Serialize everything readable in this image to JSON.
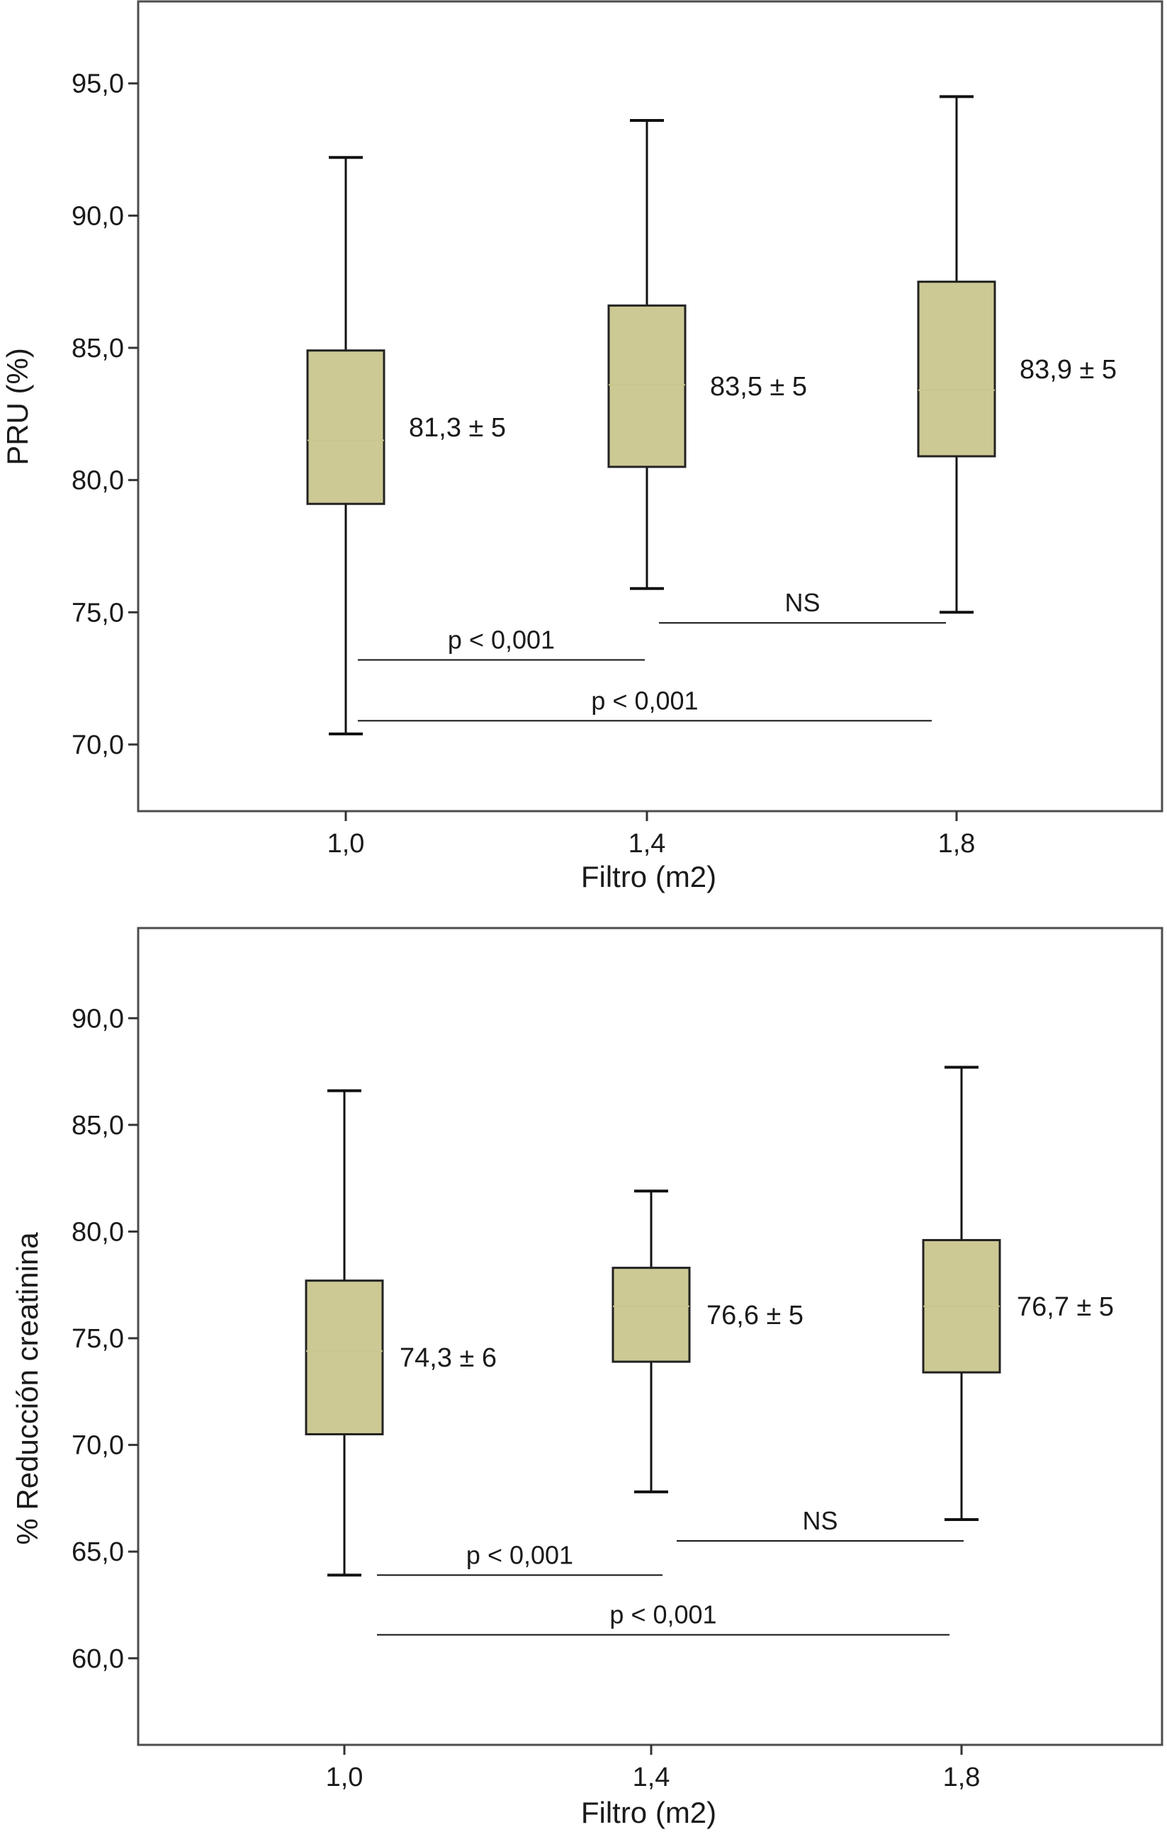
{
  "chart_data": [
    {
      "type": "box",
      "xlabel": "Filtro (m2)",
      "ylabel": "PRU (%)",
      "ylim": [
        68.9,
        96.6
      ],
      "yticks": [
        70.0,
        75.0,
        80.0,
        85.0,
        90.0,
        95.0
      ],
      "ytick_labels": [
        "70,0",
        "75,0",
        "80,0",
        "85,0",
        "90,0",
        "95,0"
      ],
      "categories": [
        "1,0",
        "1,4",
        "1,8"
      ],
      "box_color": "#cdc994",
      "boxes": [
        {
          "category": "1,0",
          "min": 70.4,
          "q1": 79.1,
          "median": 81.5,
          "q3": 84.9,
          "max": 92.2,
          "label": "81,3 ± 5"
        },
        {
          "category": "1,4",
          "min": 75.9,
          "q1": 80.5,
          "median": 83.6,
          "q3": 86.6,
          "max": 93.6,
          "label": "83,5 ± 5"
        },
        {
          "category": "1,8",
          "min": 75.0,
          "q1": 80.9,
          "median": 83.4,
          "q3": 87.5,
          "max": 94.5,
          "label": "83,9 ± 5"
        }
      ],
      "comparisons": [
        {
          "from": "1,0",
          "to": "1,4",
          "y": 73.2,
          "label": "p < 0,001"
        },
        {
          "from": "1,4",
          "to": "1,8",
          "y": 74.6,
          "label": "NS"
        },
        {
          "from": "1,0",
          "to": "1,8",
          "y": 70.9,
          "label": "p < 0,001"
        }
      ]
    },
    {
      "type": "box",
      "xlabel": "Filtro (m2)",
      "ylabel": "% Reducción creatinina",
      "ylim": [
        58.1,
        92.2
      ],
      "yticks": [
        60.0,
        65.0,
        70.0,
        75.0,
        80.0,
        85.0,
        90.0
      ],
      "ytick_labels": [
        "60,0",
        "65,0",
        "70,0",
        "75,0",
        "80,0",
        "85,0",
        "90,0"
      ],
      "categories": [
        "1,0",
        "1,4",
        "1,8"
      ],
      "box_color": "#cdc994",
      "boxes": [
        {
          "category": "1,0",
          "min": 63.9,
          "q1": 70.5,
          "median": 74.4,
          "q3": 77.7,
          "max": 86.6,
          "label": "74,3 ± 6"
        },
        {
          "category": "1,4",
          "min": 67.8,
          "q1": 73.9,
          "median": 76.5,
          "q3": 78.3,
          "max": 81.9,
          "label": "76,6 ± 5"
        },
        {
          "category": "1,8",
          "min": 66.5,
          "q1": 73.4,
          "median": 76.5,
          "q3": 79.6,
          "max": 87.7,
          "label": "76,7 ± 5"
        }
      ],
      "comparisons": [
        {
          "from": "1,0",
          "to": "1,4",
          "y": 63.9,
          "label": "p < 0,001"
        },
        {
          "from": "1,4",
          "to": "1,8",
          "y": 65.5,
          "label": "NS"
        },
        {
          "from": "1,0",
          "to": "1,8",
          "y": 61.1,
          "label": "p < 0,001"
        }
      ]
    }
  ]
}
